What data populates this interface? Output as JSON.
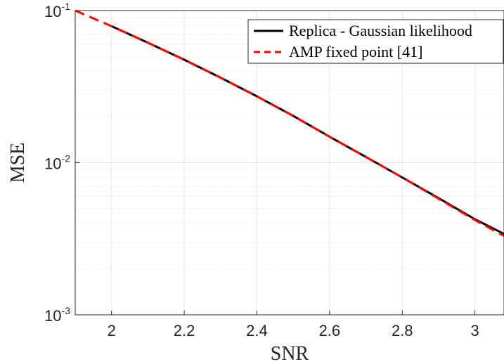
{
  "chart_data": {
    "type": "line",
    "title": "",
    "xlabel": "SNR",
    "ylabel": "MSE",
    "x_scale": "linear",
    "y_scale": "log",
    "xlim": [
      1.9,
      3.08
    ],
    "ylim": [
      0.001,
      0.1
    ],
    "x_ticks": [
      2,
      2.2,
      2.4,
      2.6,
      2.8,
      3
    ],
    "x_tick_labels": [
      "2",
      "2.2",
      "2.4",
      "2.6",
      "2.8",
      "3"
    ],
    "y_ticks": [
      {
        "value": 0.1,
        "base": "10",
        "exponent": "-1"
      },
      {
        "value": 0.01,
        "base": "10",
        "exponent": "-2"
      },
      {
        "value": 0.001,
        "base": "10",
        "exponent": "-3"
      }
    ],
    "grid": true,
    "minor_grid_y": true,
    "legend_position": "top-right",
    "series": [
      {
        "name": "Replica - Gaussian likelihood",
        "color": "#000000",
        "style": "solid",
        "x": [
          2.0,
          2.1,
          2.2,
          2.3,
          2.4,
          2.5,
          2.6,
          2.7,
          2.8,
          2.9,
          3.0,
          3.08
        ],
        "y": [
          0.079,
          0.0615,
          0.0475,
          0.0362,
          0.0273,
          0.0203,
          0.0148,
          0.0109,
          0.008,
          0.00585,
          0.00425,
          0.0034
        ]
      },
      {
        "name": "AMP fixed point [41]",
        "color": "#ff0000",
        "style": "dashed",
        "x": [
          1.9,
          2.0,
          2.1,
          2.2,
          2.3,
          2.4,
          2.5,
          2.6,
          2.7,
          2.8,
          2.9,
          3.0,
          3.08
        ],
        "y": [
          0.1,
          0.079,
          0.0615,
          0.0475,
          0.0362,
          0.0273,
          0.0203,
          0.0148,
          0.0109,
          0.008,
          0.0058,
          0.0042,
          0.0033
        ]
      }
    ]
  }
}
